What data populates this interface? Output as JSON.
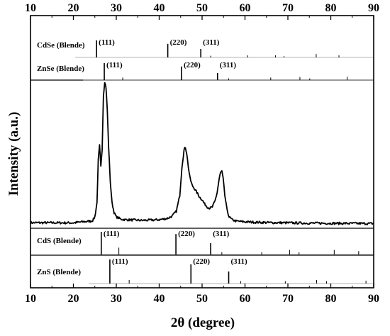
{
  "chart_data": {
    "type": "line",
    "title": "",
    "xlabel": "2θ (degree)",
    "ylabel": "Intensity (a.u.)",
    "xlim": [
      10,
      90
    ],
    "x_ticks": [
      10,
      20,
      30,
      40,
      50,
      60,
      70,
      80,
      90
    ],
    "grid": false,
    "series": [
      {
        "x": [
          10,
          15,
          20,
          22,
          24,
          24.5,
          25,
          25.5,
          25.8,
          26.1,
          26.4,
          26.7,
          27.0,
          27.3,
          27.6,
          27.9,
          28.2,
          28.6,
          29.0,
          29.5,
          30,
          31,
          32,
          34,
          36,
          38,
          40,
          42,
          43,
          44,
          44.8,
          45.3,
          45.8,
          46.1,
          46.4,
          46.8,
          47.2,
          47.7,
          48.2,
          48.8,
          49.4,
          50.0,
          50.6,
          51.2,
          51.8,
          52.4,
          53.0,
          53.5,
          54.0,
          54.3,
          54.6,
          54.9,
          55.3,
          55.8,
          56.3,
          57,
          58,
          60,
          65,
          70,
          75,
          80,
          85,
          90
        ],
        "y": [
          0.9,
          0.85,
          0.8,
          1.5,
          2.0,
          2.5,
          5,
          15,
          45,
          55,
          40,
          52,
          90,
          100,
          96,
          80,
          55,
          30,
          15,
          8,
          5,
          3.5,
          3.0,
          2.8,
          2.5,
          2.7,
          3.0,
          4.0,
          5.5,
          9,
          20,
          40,
          52,
          54,
          50,
          40,
          32,
          27,
          25,
          22,
          19,
          17,
          14,
          12,
          11,
          12,
          16,
          22,
          32,
          36,
          37,
          32,
          20,
          10,
          5,
          3,
          2,
          1.5,
          1.0,
          0.8,
          0.6,
          0.5,
          0.4,
          0.3
        ]
      }
    ],
    "reference_patterns": [
      {
        "name": "CdSe (Blende)",
        "peaks": [
          25.4,
          42.0,
          49.7,
          52.0,
          60.6,
          67.1,
          69.1,
          76.6,
          81.9
        ],
        "heights": [
          1.0,
          0.8,
          0.5,
          0.1,
          0.12,
          0.12,
          0.08,
          0.2,
          0.12
        ],
        "labels": [
          {
            "x": 25.4,
            "text": "(111)"
          },
          {
            "x": 42.0,
            "text": "(220)"
          },
          {
            "x": 49.7,
            "text": "(311)"
          }
        ]
      },
      {
        "name": "ZnSe (Blende)",
        "peaks": [
          27.2,
          31.5,
          45.2,
          53.6,
          56.2,
          66.0,
          72.8,
          75.1,
          83.8
        ],
        "heights": [
          1.0,
          0.15,
          0.8,
          0.42,
          0.1,
          0.15,
          0.18,
          0.1,
          0.2
        ],
        "labels": [
          {
            "x": 27.2,
            "text": "(111)"
          },
          {
            "x": 45.2,
            "text": "(220)"
          },
          {
            "x": 53.6,
            "text": "(311)"
          }
        ]
      },
      {
        "name": "CdS (Blende)",
        "peaks": [
          26.5,
          30.6,
          43.9,
          52.0,
          54.6,
          63.9,
          70.4,
          72.6,
          80.8,
          86.5
        ],
        "heights": [
          1.0,
          0.3,
          0.9,
          0.5,
          0.1,
          0.1,
          0.2,
          0.1,
          0.2,
          0.15
        ],
        "labels": [
          {
            "x": 26.5,
            "text": "(111)"
          },
          {
            "x": 43.9,
            "text": "(220)"
          },
          {
            "x": 52.0,
            "text": "(311)"
          }
        ]
      },
      {
        "name": "ZnS (Blende)",
        "peaks": [
          28.5,
          33.0,
          47.4,
          56.2,
          59.0,
          69.4,
          76.7,
          79.0,
          88.2
        ],
        "heights": [
          1.0,
          0.15,
          0.8,
          0.5,
          0.1,
          0.1,
          0.15,
          0.1,
          0.12
        ],
        "labels": [
          {
            "x": 28.5,
            "text": "(111)"
          },
          {
            "x": 47.4,
            "text": "(220)"
          },
          {
            "x": 56.2,
            "text": "(311)"
          }
        ]
      }
    ]
  }
}
